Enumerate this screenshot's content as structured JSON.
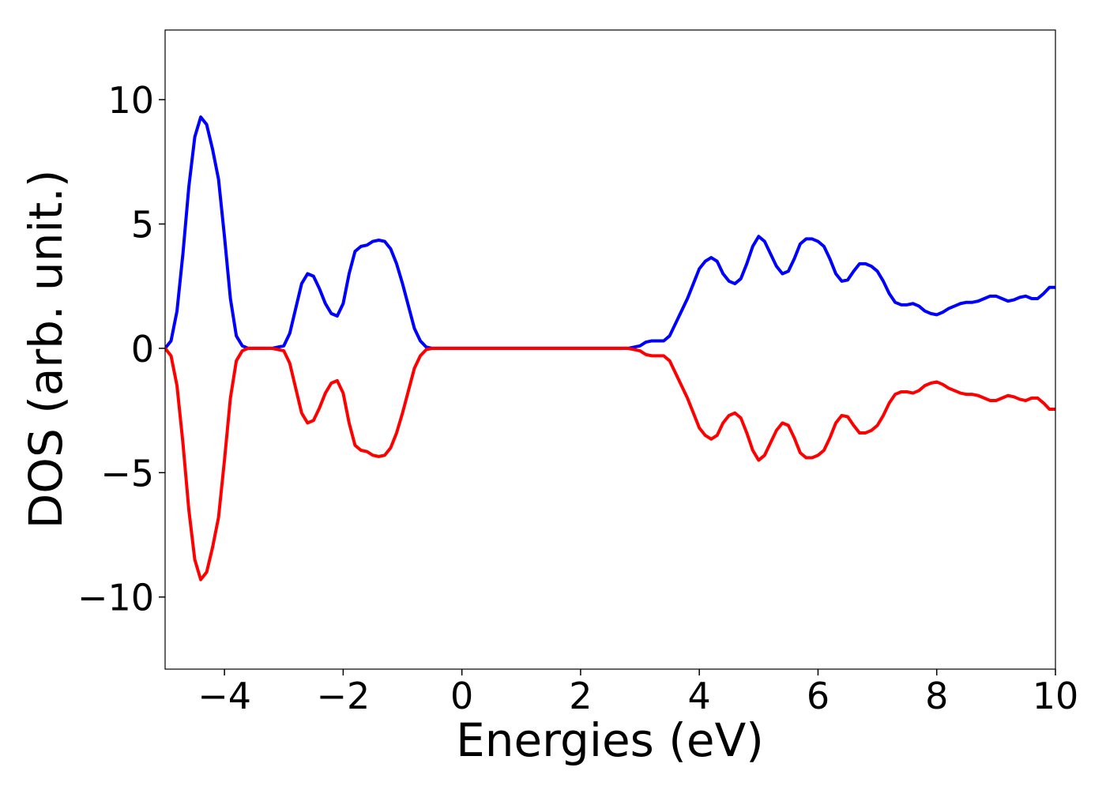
{
  "chart_data": {
    "type": "line",
    "xlabel": "Energies (eV)",
    "ylabel": "DOS (arb. unit.)",
    "x": [
      -5,
      -4.9,
      -4.8,
      -4.7,
      -4.6,
      -4.5,
      -4.4,
      -4.3,
      -4.2,
      -4.1,
      -4.0,
      -3.9,
      -3.8,
      -3.7,
      -3.6,
      -3.2,
      -3.0,
      -2.9,
      -2.8,
      -2.7,
      -2.6,
      -2.5,
      -2.4,
      -2.3,
      -2.2,
      -2.1,
      -2.0,
      -1.9,
      -1.8,
      -1.7,
      -1.6,
      -1.5,
      -1.4,
      -1.3,
      -1.2,
      -1.1,
      -1.0,
      -0.9,
      -0.8,
      -0.7,
      -0.6,
      -0.5,
      2.8,
      3.0,
      3.1,
      3.2,
      3.3,
      3.4,
      3.5,
      3.6,
      3.7,
      3.8,
      3.9,
      4.0,
      4.1,
      4.2,
      4.3,
      4.4,
      4.5,
      4.6,
      4.7,
      4.8,
      4.9,
      5.0,
      5.1,
      5.2,
      5.3,
      5.4,
      5.5,
      5.6,
      5.7,
      5.8,
      5.9,
      6.0,
      6.1,
      6.2,
      6.3,
      6.4,
      6.5,
      6.6,
      6.7,
      6.8,
      6.9,
      7.0,
      7.1,
      7.2,
      7.3,
      7.4,
      7.5,
      7.6,
      7.7,
      7.8,
      7.9,
      8.0,
      8.1,
      8.2,
      8.3,
      8.4,
      8.5,
      8.6,
      8.7,
      8.8,
      8.9,
      9.0,
      9.1,
      9.2,
      9.3,
      9.4,
      9.5,
      9.6,
      9.7,
      9.8,
      9.9,
      10.0
    ],
    "series": [
      {
        "color": "#0000ff",
        "values": [
          0,
          0.3,
          1.5,
          3.8,
          6.5,
          8.5,
          9.3,
          9.0,
          8.0,
          6.8,
          4.5,
          2.0,
          0.5,
          0.1,
          0,
          0,
          0.1,
          0.6,
          1.6,
          2.6,
          3.0,
          2.9,
          2.4,
          1.8,
          1.4,
          1.3,
          1.8,
          3.0,
          3.9,
          4.1,
          4.15,
          4.3,
          4.35,
          4.3,
          4.0,
          3.4,
          2.6,
          1.7,
          0.8,
          0.3,
          0.05,
          0,
          0,
          0.1,
          0.25,
          0.3,
          0.3,
          0.3,
          0.5,
          1.0,
          1.5,
          2.0,
          2.6,
          3.2,
          3.5,
          3.65,
          3.5,
          3.0,
          2.7,
          2.6,
          2.8,
          3.4,
          4.1,
          4.5,
          4.3,
          3.8,
          3.3,
          3.0,
          3.1,
          3.6,
          4.2,
          4.4,
          4.4,
          4.3,
          4.1,
          3.6,
          3.0,
          2.7,
          2.75,
          3.1,
          3.4,
          3.4,
          3.3,
          3.1,
          2.7,
          2.2,
          1.85,
          1.75,
          1.75,
          1.8,
          1.7,
          1.5,
          1.4,
          1.35,
          1.45,
          1.6,
          1.7,
          1.8,
          1.85,
          1.85,
          1.9,
          2.0,
          2.1,
          2.1,
          2.0,
          1.9,
          1.95,
          2.05,
          2.1,
          2.0,
          2.0,
          2.2,
          2.45,
          2.45
        ]
      },
      {
        "color": "#ff0000",
        "values": [
          0,
          -0.3,
          -1.5,
          -3.8,
          -6.5,
          -8.5,
          -9.3,
          -9.0,
          -8.0,
          -6.8,
          -4.5,
          -2.0,
          -0.5,
          -0.1,
          0,
          0,
          -0.1,
          -0.6,
          -1.6,
          -2.6,
          -3.0,
          -2.9,
          -2.4,
          -1.8,
          -1.4,
          -1.3,
          -1.8,
          -3.0,
          -3.9,
          -4.1,
          -4.15,
          -4.3,
          -4.35,
          -4.3,
          -4.0,
          -3.4,
          -2.6,
          -1.7,
          -0.8,
          -0.3,
          -0.05,
          0,
          0,
          -0.1,
          -0.25,
          -0.3,
          -0.3,
          -0.3,
          -0.5,
          -1.0,
          -1.5,
          -2.0,
          -2.6,
          -3.2,
          -3.5,
          -3.65,
          -3.5,
          -3.0,
          -2.7,
          -2.6,
          -2.8,
          -3.4,
          -4.1,
          -4.5,
          -4.3,
          -3.8,
          -3.3,
          -3.0,
          -3.1,
          -3.6,
          -4.2,
          -4.4,
          -4.4,
          -4.3,
          -4.1,
          -3.6,
          -3.0,
          -2.7,
          -2.75,
          -3.1,
          -3.4,
          -3.4,
          -3.3,
          -3.1,
          -2.7,
          -2.2,
          -1.85,
          -1.75,
          -1.75,
          -1.8,
          -1.7,
          -1.5,
          -1.4,
          -1.35,
          -1.45,
          -1.6,
          -1.7,
          -1.8,
          -1.85,
          -1.85,
          -1.9,
          -2.0,
          -2.1,
          -2.1,
          -2.0,
          -1.9,
          -1.95,
          -2.05,
          -2.1,
          -2.0,
          -2.0,
          -2.2,
          -2.45,
          -2.45
        ]
      }
    ],
    "xlim": [
      -5,
      10
    ],
    "ylim": [
      -12.9,
      12.8
    ],
    "xticks": [
      {
        "value": -4,
        "label": "−4"
      },
      {
        "value": -2,
        "label": "−2"
      },
      0,
      2,
      4,
      6,
      8,
      10
    ],
    "yticks": [
      {
        "value": -10,
        "label": "−10"
      },
      {
        "value": -5,
        "label": "−5"
      },
      0,
      5,
      10
    ],
    "grid": false
  }
}
